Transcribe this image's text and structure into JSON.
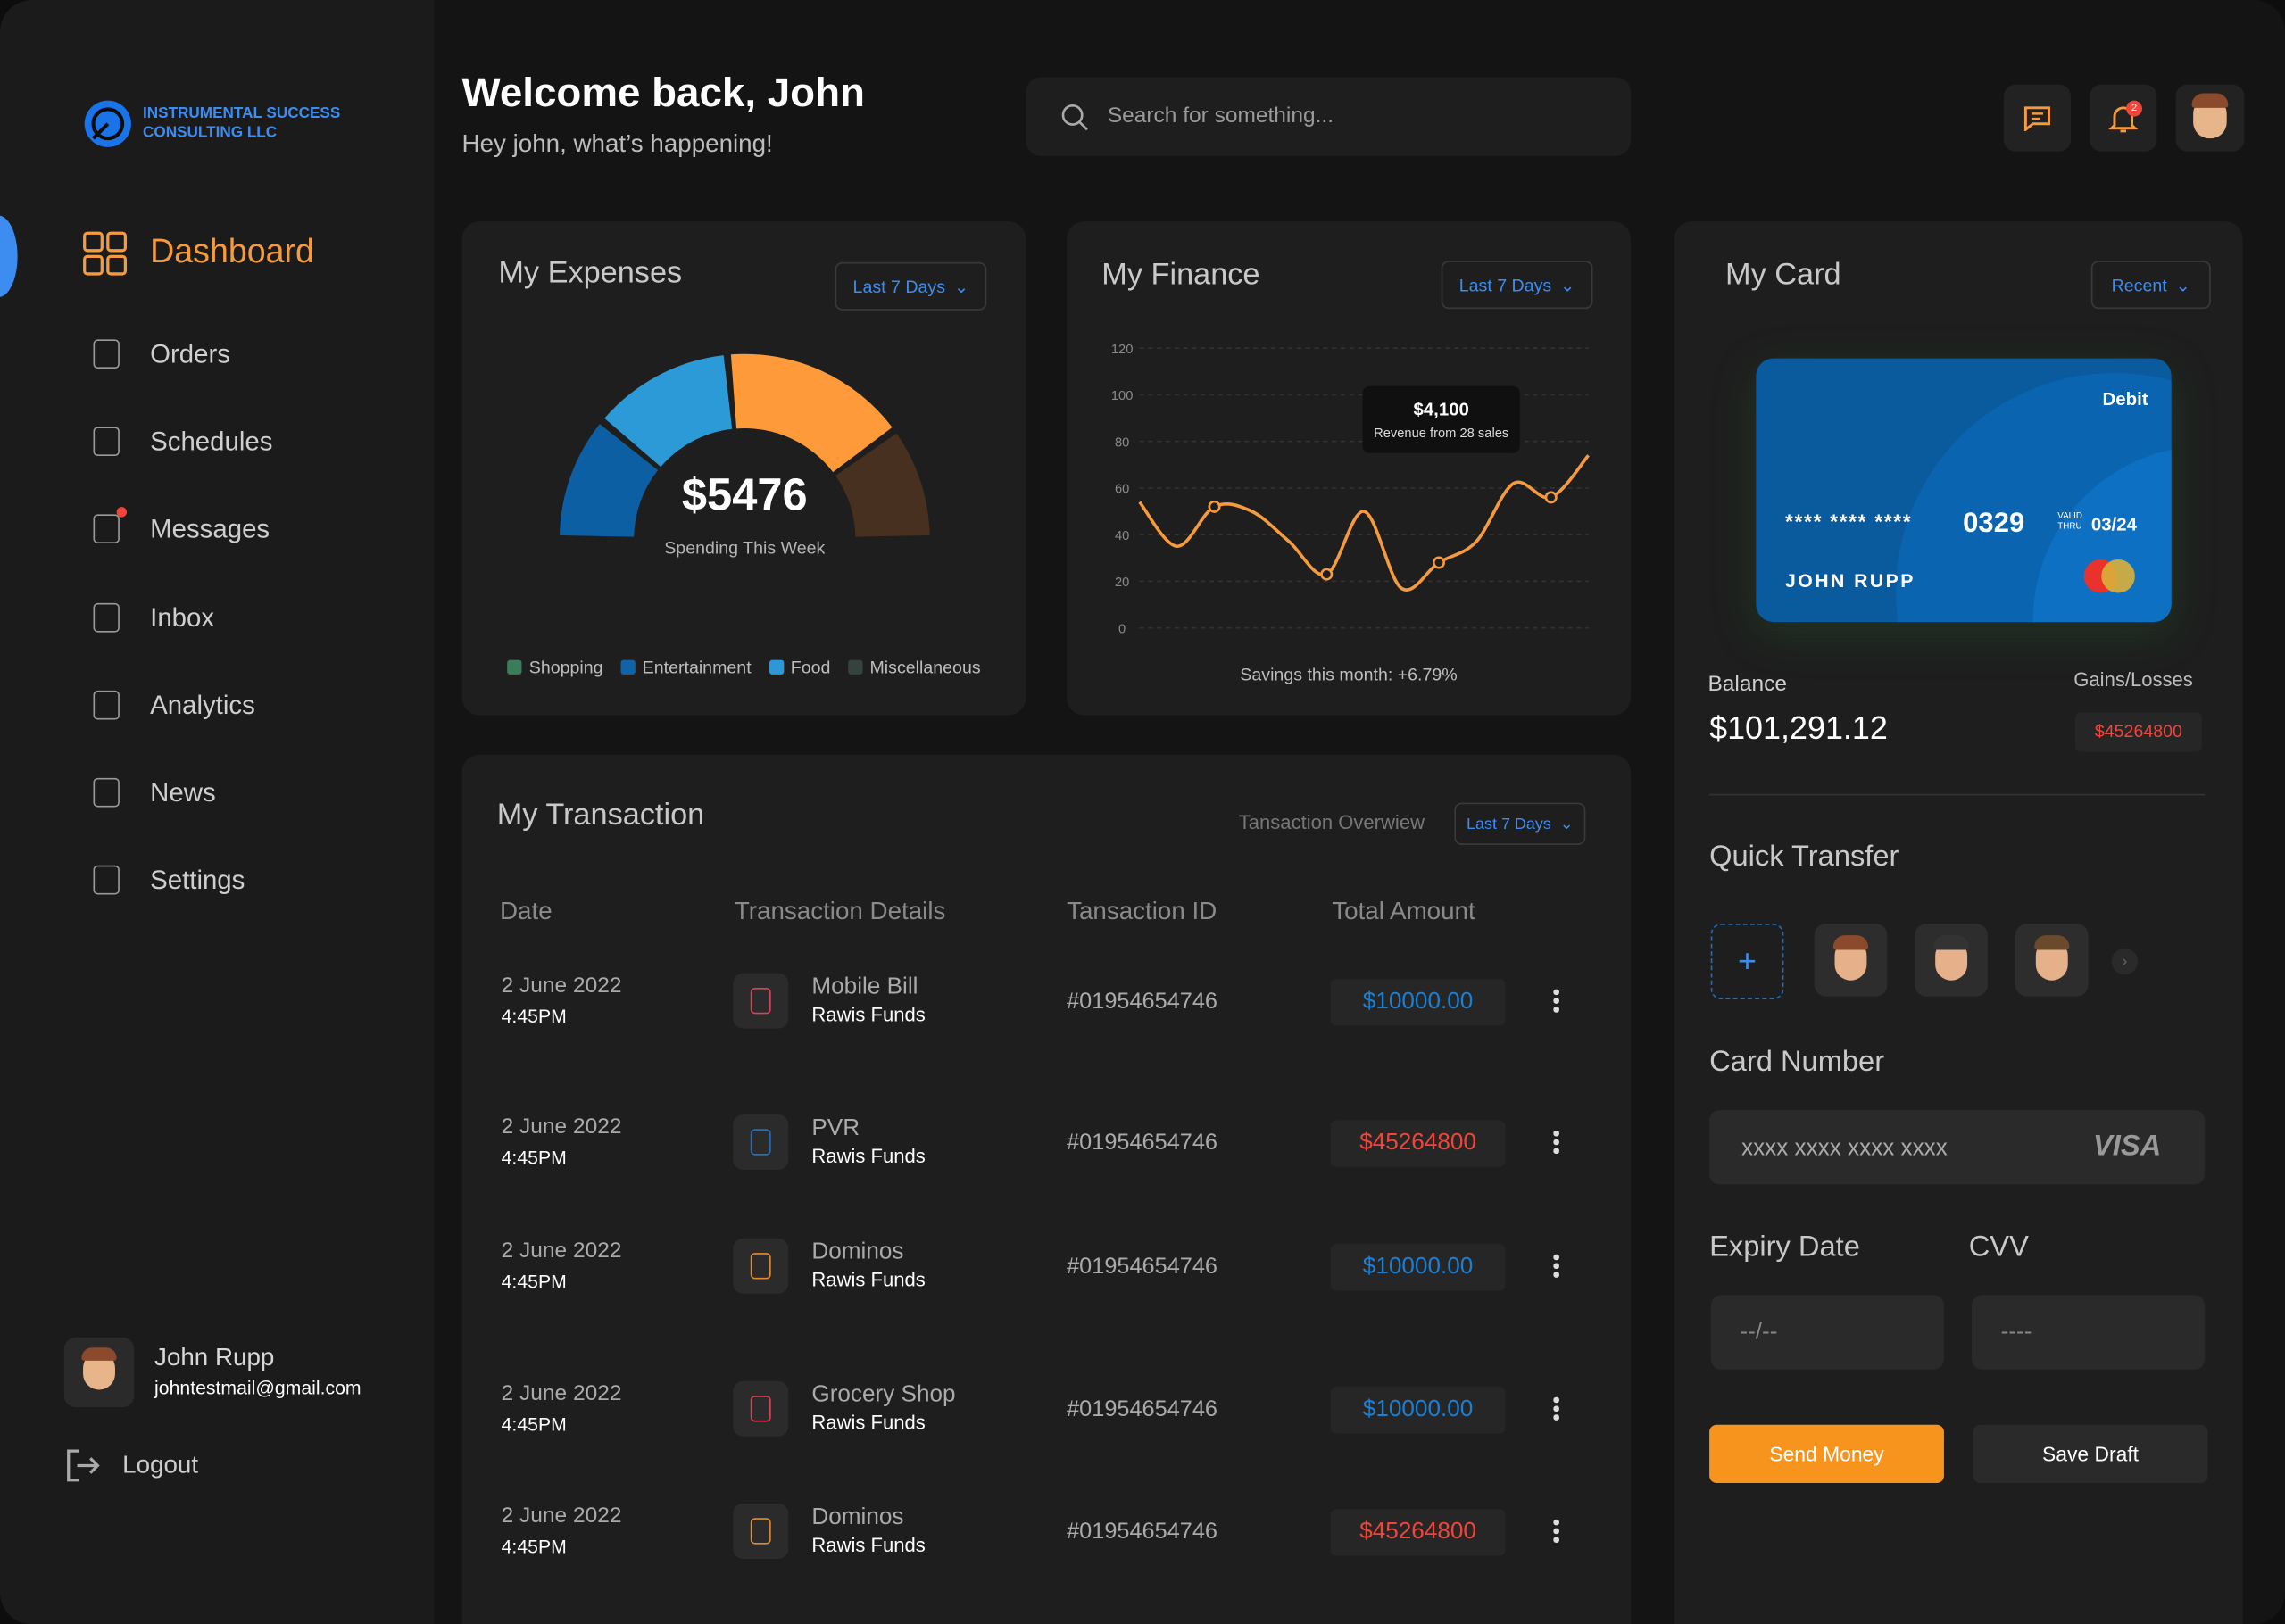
{
  "brand": {
    "line1": "INSTRUMENTAL SUCCESS",
    "line2": "CONSULTING LLC"
  },
  "nav": [
    "Dashboard",
    "Orders",
    "Schedules",
    "Messages",
    "Inbox",
    "Analytics",
    "News",
    "Settings"
  ],
  "user": {
    "name": "John Rupp",
    "email": "johntestmail@gmail.com"
  },
  "logout": "Logout",
  "header": {
    "title": "Welcome back, John",
    "subtitle": "Hey john, what’s happening!",
    "search": "Search for something...",
    "notifications": 2
  },
  "expenses": {
    "title": "My Expenses",
    "filter": "Last 7 Days",
    "total": "$5476",
    "caption": "Spending This Week",
    "segments": [
      {
        "color": "#0d5fa3",
        "value": 22
      },
      {
        "color": "#2c9ad6",
        "value": 25
      },
      {
        "color": "#ff9a3b",
        "value": 33
      },
      {
        "color": "#47301f",
        "value": 20
      }
    ],
    "legend": [
      {
        "name": "Shopping",
        "color": "#3a7c5c"
      },
      {
        "name": "Entertainment",
        "color": "#1262a8"
      },
      {
        "name": "Food",
        "color": "#2d97d8"
      },
      {
        "name": "Miscellaneous",
        "color": "#36423c"
      }
    ]
  },
  "finance": {
    "type": "line",
    "title": "My Finance",
    "filter": "Last 7 Days",
    "ylim": [
      0,
      120
    ],
    "yticks": [
      0,
      20,
      40,
      60,
      80,
      100,
      120
    ],
    "grid": true,
    "color": "#f59a3e",
    "values": [
      54,
      35,
      52,
      50,
      37,
      23,
      50,
      17,
      28,
      37,
      62,
      56,
      74
    ],
    "tooltip": {
      "value": "$4,100",
      "text": "Revenue from 28 sales"
    },
    "caption": "Savings this month: +6.79%"
  },
  "card": {
    "title": "My Card",
    "filter": "Recent",
    "kind": "Debit",
    "masked": "**** **** ****",
    "last4": "0329",
    "valid1": "VALID",
    "valid2": "THRU",
    "expiry": "03/24",
    "holder": "JOHN RUPP",
    "balance_label": "Balance",
    "balance": "$101,291.12",
    "gains_label": "Gains/Losses",
    "gains": "$45264800"
  },
  "transfer": {
    "title": "Quick Transfer",
    "plus": "+"
  },
  "form": {
    "card_label": "Card Number",
    "card_placeholder": "xxxx xxxx xxxx xxxx",
    "brand": "VISA",
    "expiry_label": "Expiry Date",
    "expiry_placeholder": "--/--",
    "cvv_label": "CVV",
    "cvv_placeholder": "----",
    "send": "Send Money",
    "draft": "Save Draft"
  },
  "transactions": {
    "title": "My Transaction",
    "overview": "Tansaction Overwiew",
    "filter": "Last 7 Days",
    "columns": [
      "Date",
      "Transaction Details",
      "Tansaction ID",
      "Total Amount"
    ],
    "rows": [
      {
        "date": "2 June 2022",
        "time": "4:45PM",
        "detail": "Mobile Bill",
        "sub": "Rawis Funds",
        "id": "#01954654746",
        "amount": "$10000.00",
        "color": "#1d7fd1",
        "icon": "#e0405a"
      },
      {
        "date": "2 June 2022",
        "time": "4:45PM",
        "detail": "PVR",
        "sub": "Rawis Funds",
        "id": "#01954654746",
        "amount": "$45264800",
        "color": "#f0453a",
        "icon": "#1d6fc0"
      },
      {
        "date": "2 June 2022",
        "time": "4:45PM",
        "detail": "Dominos",
        "sub": "Rawis Funds",
        "id": "#01954654746",
        "amount": "$10000.00",
        "color": "#1d7fd1",
        "icon": "#e8892e"
      },
      {
        "date": "2 June 2022",
        "time": "4:45PM",
        "detail": "Grocery Shop",
        "sub": "Rawis Funds",
        "id": "#01954654746",
        "amount": "$10000.00",
        "color": "#1d7fd1",
        "icon": "#e0405a"
      },
      {
        "date": "2 June 2022",
        "time": "4:45PM",
        "detail": "Dominos",
        "sub": "Rawis Funds",
        "id": "#01954654746",
        "amount": "$45264800",
        "color": "#f0453a",
        "icon": "#e8892e"
      }
    ]
  }
}
